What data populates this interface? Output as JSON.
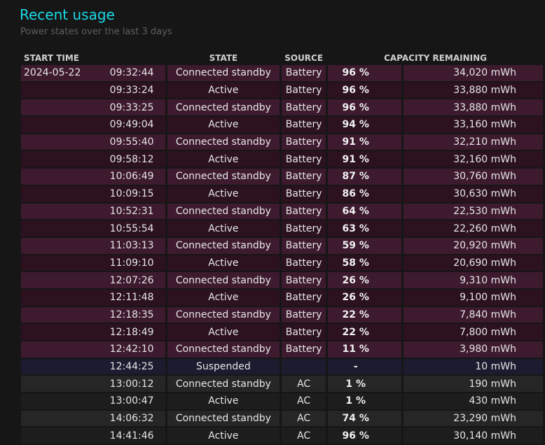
{
  "title": "Recent usage",
  "subtitle": "Power states over the last 3 days",
  "columns": [
    "START TIME",
    "STATE",
    "SOURCE",
    "CAPACITY REMAINING"
  ],
  "colors": {
    "title": "#19d9e6",
    "battery_row": "#3e1a2f",
    "battery_row_alt": "#2c121f",
    "suspended_row": "#1c1b30",
    "ac_row": "#262626",
    "ac_row_alt": "#1d1d1d"
  },
  "rows": [
    {
      "date": "2024-05-22",
      "time": "09:32:44",
      "state": "Connected standby",
      "source": "Battery",
      "percent": "96 %",
      "capacity": "34,020 mWh"
    },
    {
      "date": "",
      "time": "09:33:24",
      "state": "Active",
      "source": "Battery",
      "percent": "96 %",
      "capacity": "33,880 mWh"
    },
    {
      "date": "",
      "time": "09:33:25",
      "state": "Connected standby",
      "source": "Battery",
      "percent": "96 %",
      "capacity": "33,880 mWh"
    },
    {
      "date": "",
      "time": "09:49:04",
      "state": "Active",
      "source": "Battery",
      "percent": "94 %",
      "capacity": "33,160 mWh"
    },
    {
      "date": "",
      "time": "09:55:40",
      "state": "Connected standby",
      "source": "Battery",
      "percent": "91 %",
      "capacity": "32,210 mWh"
    },
    {
      "date": "",
      "time": "09:58:12",
      "state": "Active",
      "source": "Battery",
      "percent": "91 %",
      "capacity": "32,160 mWh"
    },
    {
      "date": "",
      "time": "10:06:49",
      "state": "Connected standby",
      "source": "Battery",
      "percent": "87 %",
      "capacity": "30,760 mWh"
    },
    {
      "date": "",
      "time": "10:09:15",
      "state": "Active",
      "source": "Battery",
      "percent": "86 %",
      "capacity": "30,630 mWh"
    },
    {
      "date": "",
      "time": "10:52:31",
      "state": "Connected standby",
      "source": "Battery",
      "percent": "64 %",
      "capacity": "22,530 mWh"
    },
    {
      "date": "",
      "time": "10:55:54",
      "state": "Active",
      "source": "Battery",
      "percent": "63 %",
      "capacity": "22,260 mWh"
    },
    {
      "date": "",
      "time": "11:03:13",
      "state": "Connected standby",
      "source": "Battery",
      "percent": "59 %",
      "capacity": "20,920 mWh"
    },
    {
      "date": "",
      "time": "11:09:10",
      "state": "Active",
      "source": "Battery",
      "percent": "58 %",
      "capacity": "20,690 mWh"
    },
    {
      "date": "",
      "time": "12:07:26",
      "state": "Connected standby",
      "source": "Battery",
      "percent": "26 %",
      "capacity": "9,310 mWh"
    },
    {
      "date": "",
      "time": "12:11:48",
      "state": "Active",
      "source": "Battery",
      "percent": "26 %",
      "capacity": "9,100 mWh"
    },
    {
      "date": "",
      "time": "12:18:35",
      "state": "Connected standby",
      "source": "Battery",
      "percent": "22 %",
      "capacity": "7,840 mWh"
    },
    {
      "date": "",
      "time": "12:18:49",
      "state": "Active",
      "source": "Battery",
      "percent": "22 %",
      "capacity": "7,800 mWh"
    },
    {
      "date": "",
      "time": "12:42:10",
      "state": "Connected standby",
      "source": "Battery",
      "percent": "11 %",
      "capacity": "3,980 mWh"
    },
    {
      "date": "",
      "time": "12:44:25",
      "state": "Suspended",
      "source": "",
      "percent": "-",
      "capacity": "10 mWh"
    },
    {
      "date": "",
      "time": "13:00:12",
      "state": "Connected standby",
      "source": "AC",
      "percent": "1 %",
      "capacity": "190 mWh"
    },
    {
      "date": "",
      "time": "13:00:47",
      "state": "Active",
      "source": "AC",
      "percent": "1 %",
      "capacity": "430 mWh"
    },
    {
      "date": "",
      "time": "14:06:32",
      "state": "Connected standby",
      "source": "AC",
      "percent": "74 %",
      "capacity": "23,290 mWh"
    },
    {
      "date": "",
      "time": "14:41:46",
      "state": "Active",
      "source": "AC",
      "percent": "96 %",
      "capacity": "30,140 mWh"
    }
  ]
}
